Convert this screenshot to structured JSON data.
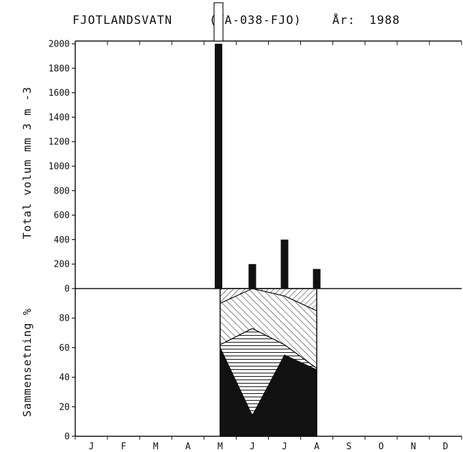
{
  "title": {
    "lake": "FJOTLANDSVATN",
    "code": "(VA-038-FJO)",
    "year_label": "År:",
    "year": "1988"
  },
  "chart_data": [
    {
      "type": "bar",
      "ylabel": "Total volum mm 3 m -3",
      "ylim": [
        0,
        2000
      ],
      "yticks": [
        0,
        200,
        400,
        600,
        800,
        1000,
        1200,
        1400,
        1600,
        1800,
        2000
      ],
      "months": [
        "J",
        "F",
        "M",
        "A",
        "M",
        "J",
        "J",
        "A",
        "S",
        "O",
        "N",
        "D"
      ],
      "bars": [
        {
          "month": 4.45,
          "value": 2000,
          "clipped": true
        },
        {
          "month": 5.5,
          "value": 200
        },
        {
          "month": 6.5,
          "value": 400
        },
        {
          "month": 7.5,
          "value": 160
        }
      ]
    },
    {
      "type": "area",
      "ylabel": "Sammensetning %",
      "ylim": [
        0,
        100
      ],
      "yticks": [
        0,
        20,
        40,
        60,
        80
      ],
      "months": [
        "J",
        "F",
        "M",
        "A",
        "M",
        "J",
        "J",
        "A",
        "S",
        "O",
        "N",
        "D"
      ],
      "x": [
        4.5,
        5.5,
        6.5,
        7.5
      ],
      "layers": [
        {
          "pattern": "solid",
          "top": [
            60,
            14,
            55,
            45
          ]
        },
        {
          "pattern": "horizontal-hatch",
          "top": [
            62,
            73,
            62,
            46
          ]
        },
        {
          "pattern": "diagonal-hatch-wide",
          "top": [
            90,
            100,
            95,
            85
          ]
        },
        {
          "pattern": "diagonal-hatch-fine",
          "top": [
            100,
            100,
            100,
            100
          ]
        }
      ]
    }
  ]
}
